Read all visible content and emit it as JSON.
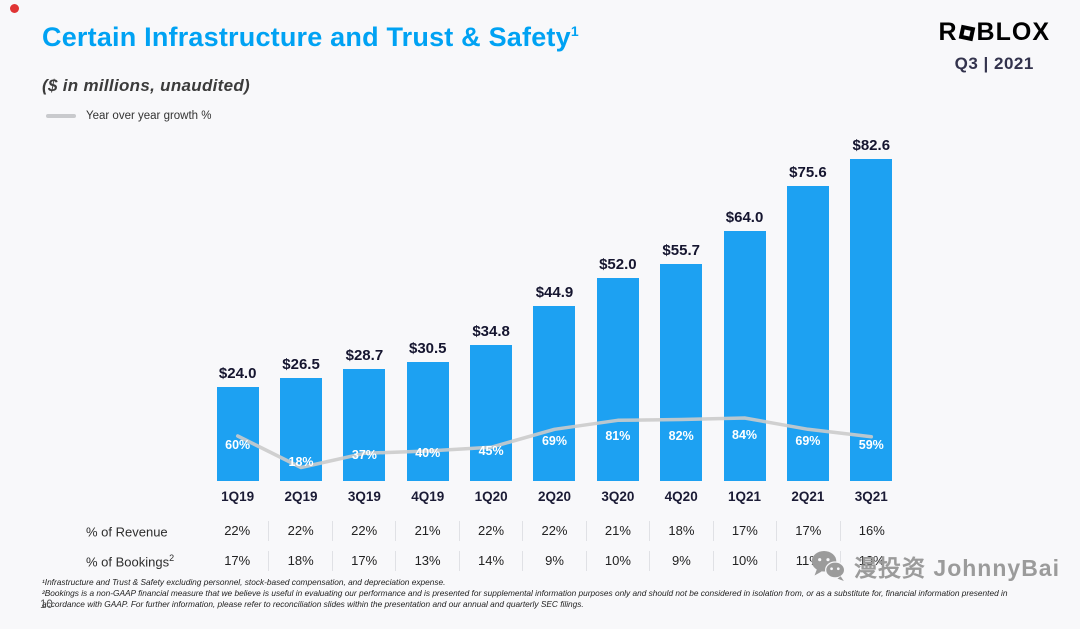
{
  "slide": {
    "title": "Certain Infrastructure and Trust & Safety",
    "title_superscript": "1",
    "logo_prefix": "R",
    "logo_suffix": "BLOX",
    "period": "Q3 | 2021",
    "subtitle": "($ in millions,  unaudited)",
    "legend_label": "Year over year growth %",
    "page_number": "10"
  },
  "colors": {
    "accent_blue": "#00a2f3",
    "bar_blue": "#1da1f2",
    "line_gray": "#cbcbcb"
  },
  "chart_data": {
    "type": "bar",
    "title": "Certain Infrastructure and Trust & Safety ($ in millions, unaudited)",
    "categories": [
      "1Q19",
      "2Q19",
      "3Q19",
      "4Q19",
      "1Q20",
      "2Q20",
      "3Q20",
      "4Q20",
      "1Q21",
      "2Q21",
      "3Q21"
    ],
    "series": [
      {
        "name": "Certain Infrastructure and Trust & Safety ($M)",
        "type": "bar",
        "values": [
          24.0,
          26.5,
          28.7,
          30.5,
          34.8,
          44.9,
          52.0,
          55.7,
          64.0,
          75.6,
          82.6
        ],
        "labels": [
          "$24.0",
          "$26.5",
          "$28.7",
          "$30.5",
          "$34.8",
          "$44.9",
          "$52.0",
          "$55.7",
          "$64.0",
          "$75.6",
          "$82.6"
        ]
      },
      {
        "name": "Year over year growth %",
        "type": "line",
        "values": [
          60,
          18,
          37,
          40,
          45,
          69,
          81,
          82,
          84,
          69,
          59
        ],
        "labels": [
          "60%",
          "18%",
          "37%",
          "40%",
          "45%",
          "69%",
          "81%",
          "82%",
          "84%",
          "69%",
          "59%"
        ]
      }
    ],
    "ylim": [
      0,
      88
    ],
    "grid": false,
    "legend_position": "top-left",
    "bar_color": "#1da1f2",
    "line_color": "#cbcbcb"
  },
  "table": {
    "rows": [
      {
        "label": "% of Revenue",
        "values": [
          "22%",
          "22%",
          "22%",
          "21%",
          "22%",
          "22%",
          "21%",
          "18%",
          "17%",
          "17%",
          "16%"
        ]
      },
      {
        "label": "% of Bookings",
        "label_superscript": "2",
        "values": [
          "17%",
          "18%",
          "17%",
          "13%",
          "14%",
          "9%",
          "10%",
          "9%",
          "10%",
          "11%",
          "13%"
        ]
      }
    ]
  },
  "footnotes": [
    "¹Infrastructure and Trust & Safety excluding personnel, stock-based compensation, and depreciation expense.",
    "²Bookings is a non-GAAP financial measure that we believe is useful in evaluating our performance and is presented for supplemental information purposes only and should not be considered in isolation from, or as a substitute for, financial information presented in accordance with GAAP. For further information, please refer to reconciliation slides within the presentation and our annual and quarterly SEC filings."
  ],
  "watermark": {
    "text": "漫投资 JohnnyBai"
  }
}
